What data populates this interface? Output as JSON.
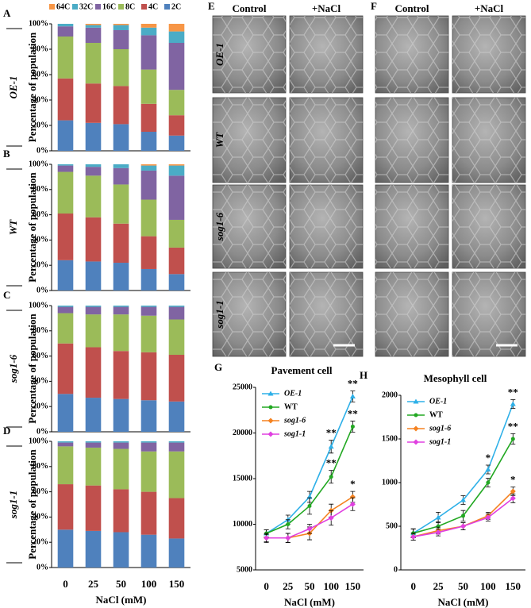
{
  "chart_data": [
    {
      "panel": "A",
      "type": "bar",
      "stacked": true,
      "genotype": "OE-1",
      "ylabel": "Percentage of population",
      "categories": [
        null,
        null,
        null,
        null,
        null
      ],
      "ylim": [
        0,
        100
      ],
      "yticks": [
        {
          "value": 0,
          "label": "0%"
        },
        {
          "value": 20,
          "label": "20%"
        },
        {
          "value": 40,
          "label": "40%"
        },
        {
          "value": 60,
          "label": "60%"
        },
        {
          "value": 80,
          "label": "80%"
        },
        {
          "value": 100,
          "label": "100%"
        }
      ],
      "series": [
        {
          "name": "2C",
          "color": "#4f81bd",
          "values": [
            24,
            22,
            21,
            15,
            12
          ]
        },
        {
          "name": "4C",
          "color": "#c0504d",
          "values": [
            33,
            31,
            30,
            22,
            16
          ]
        },
        {
          "name": "8C",
          "color": "#9bbb59",
          "values": [
            33,
            32,
            29,
            27,
            20
          ]
        },
        {
          "name": "16C",
          "color": "#8064a2",
          "values": [
            8,
            12,
            15,
            27,
            37
          ]
        },
        {
          "name": "32C",
          "color": "#4bacc6",
          "values": [
            2,
            2,
            4,
            6,
            9
          ]
        },
        {
          "name": "64C",
          "color": "#f79646",
          "values": [
            0,
            1,
            1,
            3,
            6
          ]
        }
      ]
    },
    {
      "panel": "B",
      "type": "bar",
      "stacked": true,
      "genotype": "WT",
      "ylabel": "Percentage of population",
      "categories": [
        null,
        null,
        null,
        null,
        null
      ],
      "ylim": [
        0,
        100
      ],
      "yticks": [
        {
          "value": 0,
          "label": "0%"
        },
        {
          "value": 20,
          "label": "20%"
        },
        {
          "value": 40,
          "label": "40%"
        },
        {
          "value": 60,
          "label": "60%"
        },
        {
          "value": 80,
          "label": "80%"
        },
        {
          "value": 100,
          "label": "100%"
        }
      ],
      "series": [
        {
          "color": "#4f81bd",
          "values": [
            24,
            23,
            22,
            17,
            13
          ]
        },
        {
          "color": "#c0504d",
          "values": [
            37,
            35,
            31,
            26,
            21
          ]
        },
        {
          "color": "#9bbb59",
          "values": [
            33,
            33,
            31,
            29,
            22
          ]
        },
        {
          "color": "#8064a2",
          "values": [
            5,
            7,
            13,
            23,
            35
          ]
        },
        {
          "color": "#4bacc6",
          "values": [
            1,
            2,
            3,
            4,
            8
          ]
        },
        {
          "color": "#f79646",
          "values": [
            0,
            0,
            0,
            1,
            1
          ]
        }
      ]
    },
    {
      "panel": "C",
      "type": "bar",
      "stacked": true,
      "genotype": "sog1-6",
      "ylabel": "Percentage of population",
      "categories": [
        null,
        null,
        null,
        null,
        null
      ],
      "ylim": [
        0,
        100
      ],
      "yticks": [
        {
          "value": 0,
          "label": "0%"
        },
        {
          "value": 20,
          "label": "20%"
        },
        {
          "value": 40,
          "label": "40%"
        },
        {
          "value": 60,
          "label": "60%"
        },
        {
          "value": 80,
          "label": "80%"
        },
        {
          "value": 100,
          "label": "100%"
        }
      ],
      "series": [
        {
          "color": "#4f81bd",
          "values": [
            30,
            27,
            26,
            25,
            24
          ]
        },
        {
          "color": "#c0504d",
          "values": [
            40,
            40,
            38,
            38,
            37
          ]
        },
        {
          "color": "#9bbb59",
          "values": [
            24,
            26,
            29,
            29,
            28
          ]
        },
        {
          "color": "#8064a2",
          "values": [
            5,
            6,
            6,
            7,
            10
          ]
        },
        {
          "color": "#4bacc6",
          "values": [
            1,
            1,
            1,
            1,
            1
          ]
        },
        {
          "color": "#f79646",
          "values": [
            0,
            0,
            0,
            0,
            0
          ]
        }
      ]
    },
    {
      "panel": "D",
      "type": "bar",
      "stacked": true,
      "genotype": "sog1-1",
      "ylabel": "Percentage of population",
      "xlabel": "NaCl (mM)",
      "categories": [
        "0",
        "25",
        "50",
        "100",
        "150"
      ],
      "ylim": [
        0,
        100
      ],
      "yticks": [
        {
          "value": 0,
          "label": "0%"
        },
        {
          "value": 20,
          "label": "20%"
        },
        {
          "value": 40,
          "label": "40%"
        },
        {
          "value": 60,
          "label": "60%"
        },
        {
          "value": 80,
          "label": "80%"
        },
        {
          "value": 100,
          "label": "100%"
        }
      ],
      "series": [
        {
          "color": "#4f81bd",
          "values": [
            30,
            29,
            28,
            26,
            23
          ]
        },
        {
          "color": "#c0504d",
          "values": [
            36,
            36,
            34,
            34,
            32
          ]
        },
        {
          "color": "#9bbb59",
          "values": [
            30,
            30,
            32,
            32,
            37
          ]
        },
        {
          "color": "#8064a2",
          "values": [
            3,
            4,
            5,
            7,
            7
          ]
        },
        {
          "color": "#4bacc6",
          "values": [
            1,
            1,
            1,
            1,
            1
          ]
        },
        {
          "color": "#f79646",
          "values": [
            0,
            0,
            0,
            0,
            0
          ]
        }
      ]
    },
    {
      "panel": "G",
      "type": "line",
      "title": "Pavement cell",
      "xlabel": "NaCl (mM)",
      "categories": [
        "0",
        "25",
        "50",
        "100",
        "150"
      ],
      "ylim": [
        5000,
        25000
      ],
      "yticks": [
        5000,
        10000,
        15000,
        20000,
        25000
      ],
      "series": [
        {
          "name": "OE-1",
          "italic": true,
          "color": "#2eb0e8",
          "marker": "triangle",
          "values": [
            9000,
            10500,
            13000,
            18500,
            24000
          ],
          "errors": [
            400,
            500,
            600,
            700,
            600
          ],
          "significance": [
            null,
            null,
            null,
            "**",
            "**"
          ]
        },
        {
          "name": "WT",
          "italic": false,
          "color": "#22a822",
          "marker": "circle",
          "values": [
            9000,
            10000,
            12000,
            15200,
            20700
          ],
          "errors": [
            400,
            500,
            900,
            700,
            600
          ],
          "significance": [
            null,
            null,
            null,
            "**",
            "**"
          ]
        },
        {
          "name": "sog1-6",
          "italic": true,
          "color": "#f58220",
          "marker": "diamond",
          "values": [
            8500,
            8500,
            9000,
            11500,
            13000
          ],
          "errors": [
            500,
            500,
            700,
            700,
            600
          ],
          "significance": [
            null,
            null,
            null,
            null,
            "*"
          ]
        },
        {
          "name": "sog1-1",
          "italic": true,
          "color": "#e040e0",
          "marker": "diamond",
          "values": [
            8500,
            8500,
            9500,
            10700,
            12200
          ],
          "errors": [
            400,
            500,
            500,
            800,
            700
          ],
          "significance": [
            null,
            null,
            null,
            null,
            null
          ]
        }
      ]
    },
    {
      "panel": "H",
      "type": "line",
      "title": "Mesophyll cell",
      "xlabel": "NaCl (mM)",
      "categories": [
        "0",
        "25",
        "50",
        "100",
        "150"
      ],
      "ylim": [
        0,
        2000
      ],
      "yticks": [
        0,
        500,
        1000,
        1500,
        2000
      ],
      "series": [
        {
          "name": "OE-1",
          "italic": true,
          "color": "#2eb0e8",
          "marker": "triangle",
          "values": [
            420,
            600,
            800,
            1150,
            1900
          ],
          "errors": [
            50,
            60,
            50,
            50,
            50
          ],
          "significance": [
            null,
            null,
            null,
            "*",
            "**"
          ]
        },
        {
          "name": "WT",
          "italic": false,
          "color": "#22a822",
          "marker": "circle",
          "values": [
            420,
            500,
            620,
            1000,
            1500
          ],
          "errors": [
            50,
            50,
            60,
            50,
            60
          ],
          "significance": [
            null,
            null,
            null,
            null,
            "**"
          ]
        },
        {
          "name": "sog1-6",
          "italic": true,
          "color": "#f58220",
          "marker": "diamond",
          "values": [
            380,
            450,
            500,
            620,
            900
          ],
          "errors": [
            40,
            40,
            40,
            40,
            50
          ],
          "significance": [
            null,
            null,
            null,
            null,
            "*"
          ]
        },
        {
          "name": "sog1-1",
          "italic": true,
          "color": "#e040e0",
          "marker": "diamond",
          "values": [
            380,
            430,
            500,
            600,
            820
          ],
          "errors": [
            40,
            40,
            40,
            40,
            50
          ],
          "significance": [
            null,
            null,
            null,
            null,
            null
          ]
        }
      ]
    }
  ],
  "micrographs": [
    {
      "panel": "E",
      "columns": [
        "Control",
        "+NaCl"
      ],
      "rows": [
        "OE-1",
        "WT",
        "sog1-6",
        "sog1-1"
      ]
    },
    {
      "panel": "F",
      "columns": [
        "Control",
        "+NaCl"
      ]
    }
  ]
}
